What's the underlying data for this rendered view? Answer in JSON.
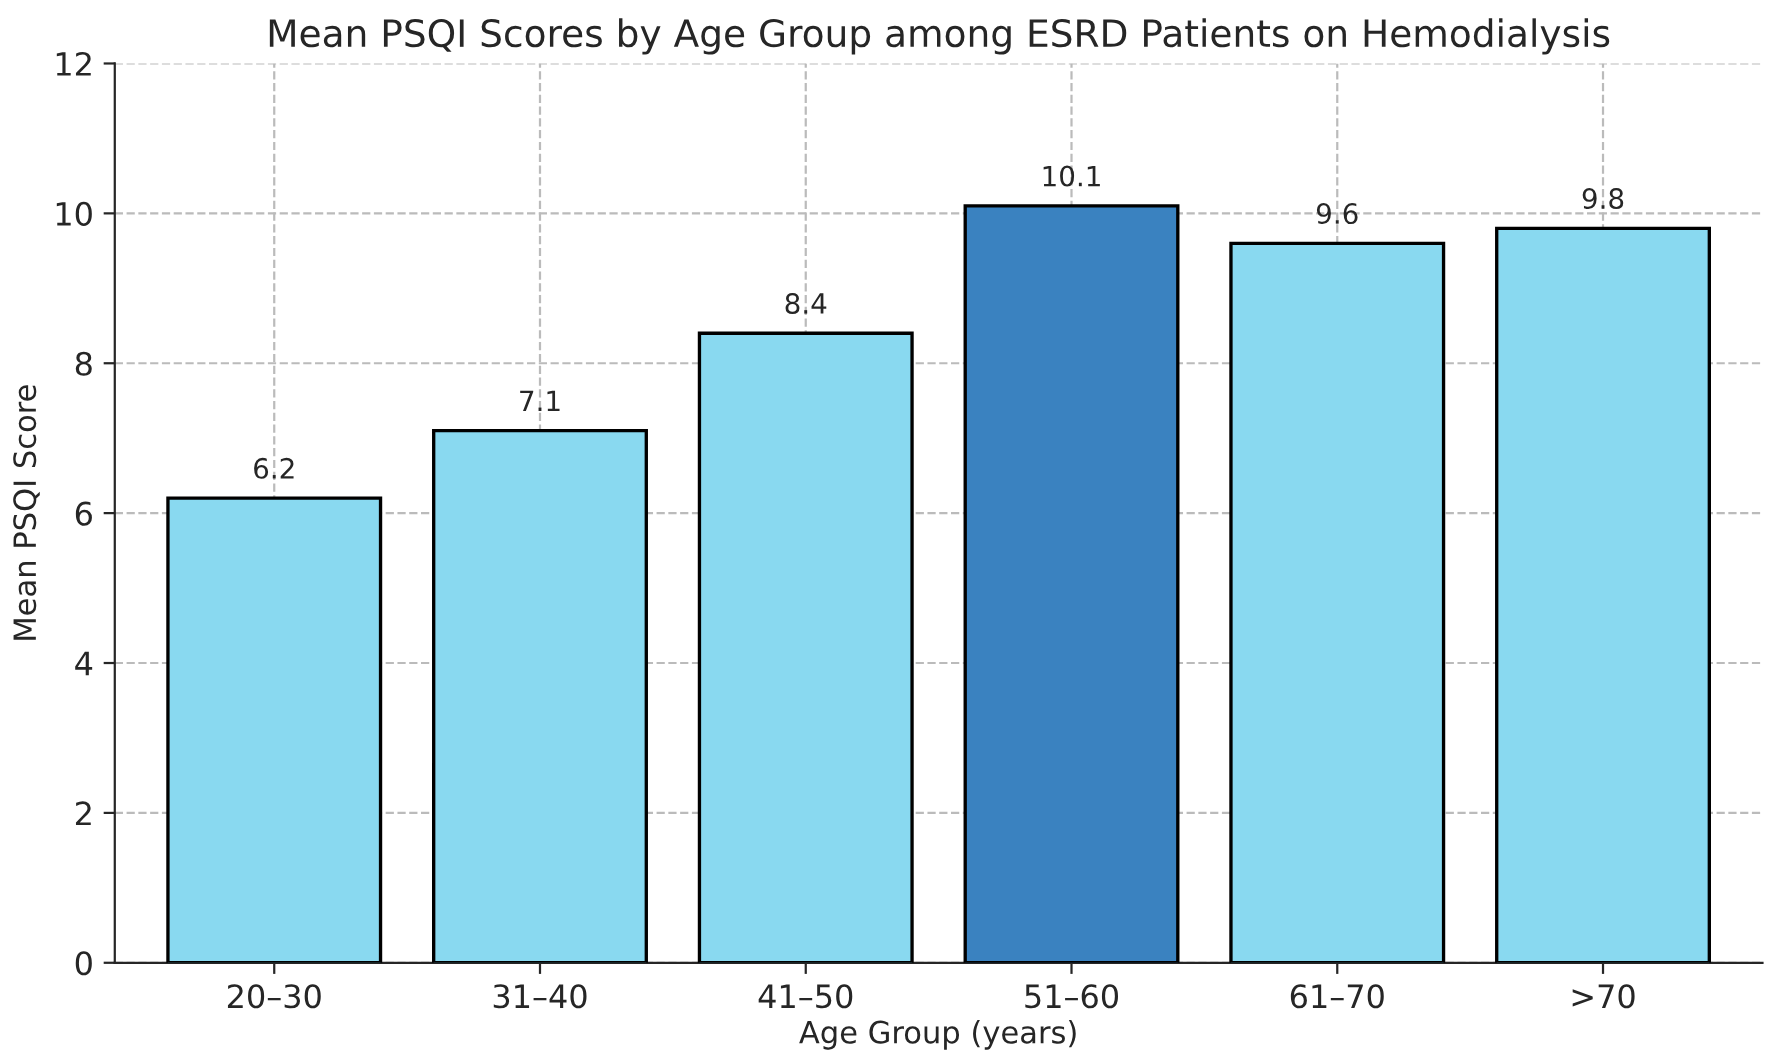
{
  "chart_data": {
    "type": "bar",
    "title": "Mean PSQI Scores by Age Group among ESRD Patients on Hemodialysis",
    "xlabel": "Age Group (years)",
    "ylabel": "Mean PSQI Score",
    "categories": [
      "20–30",
      "31–40",
      "41–50",
      "51–60",
      "61–70",
      ">70"
    ],
    "values": [
      6.2,
      7.1,
      8.4,
      10.1,
      9.6,
      9.8
    ],
    "colors": [
      "#89d9f0",
      "#89d9f0",
      "#89d9f0",
      "#3a82c0",
      "#89d9f0",
      "#89d9f0"
    ],
    "ylim": [
      0,
      12
    ],
    "yticks": [
      0,
      2,
      4,
      6,
      8,
      10,
      12
    ],
    "grid": true,
    "data_labels": true
  }
}
